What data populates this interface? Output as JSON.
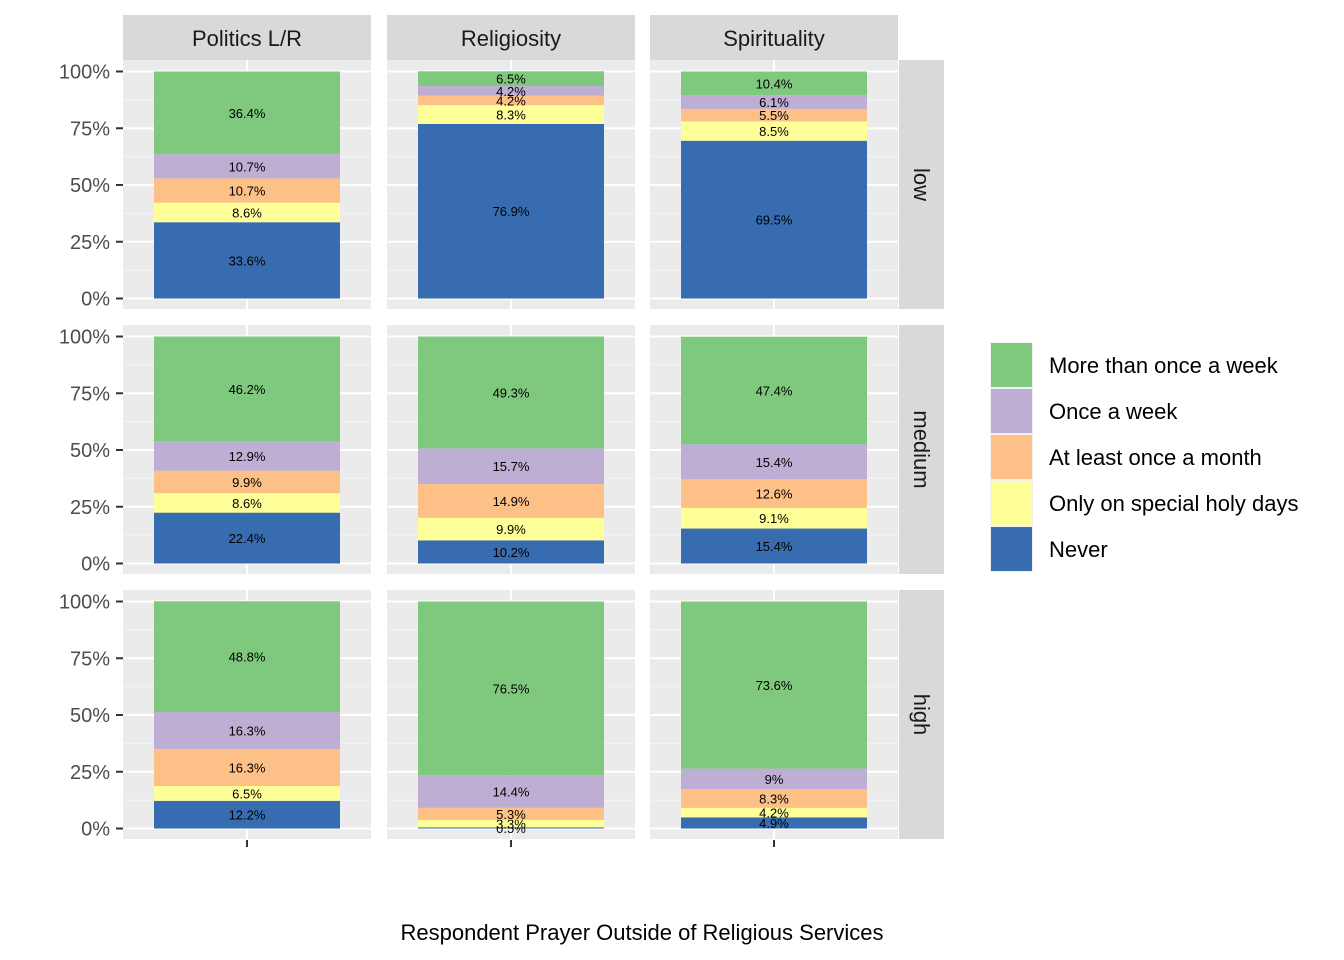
{
  "chart_data": {
    "type": "bar",
    "stacked": true,
    "xlabel": "Respondent Prayer Outside of Religious Services",
    "ylabel": "",
    "ylim": [
      0,
      100
    ],
    "y_ticks": [
      "0%",
      "25%",
      "50%",
      "75%",
      "100%"
    ],
    "y_tick_values": [
      0,
      25,
      50,
      75,
      100
    ],
    "grid": true,
    "legend_position": "right",
    "facet_columns": [
      "Politics L/R",
      "Religiosity",
      "Spirituality"
    ],
    "facet_rows": [
      "low",
      "medium",
      "high"
    ],
    "series": [
      {
        "name": "Never",
        "color": "#386CB0"
      },
      {
        "name": "Only on special holy days",
        "color": "#FFFF99"
      },
      {
        "name": "At least once a month",
        "color": "#FDC086"
      },
      {
        "name": "Once a week",
        "color": "#BEAED4"
      },
      {
        "name": "More than once a week",
        "color": "#7FC97F"
      }
    ],
    "legend_order": [
      "More than once a week",
      "Once a week",
      "At least once a month",
      "Only on special holy days",
      "Never"
    ],
    "panels": [
      {
        "column": "Politics L/R",
        "row": "low",
        "values": [
          33.6,
          8.6,
          10.7,
          10.7,
          36.4
        ],
        "labels": [
          "33.6%",
          "8.6%",
          "10.7%",
          "10.7%",
          "36.4%"
        ]
      },
      {
        "column": "Religiosity",
        "row": "low",
        "values": [
          76.9,
          8.3,
          4.2,
          4.2,
          6.5
        ],
        "labels": [
          "76.9%",
          "8.3%",
          "4.2%",
          "4.2%",
          "6.5%"
        ]
      },
      {
        "column": "Spirituality",
        "row": "low",
        "values": [
          69.5,
          8.5,
          5.5,
          6.1,
          10.4
        ],
        "labels": [
          "69.5%",
          "8.5%",
          "5.5%",
          "6.1%",
          "10.4%"
        ]
      },
      {
        "column": "Politics L/R",
        "row": "medium",
        "values": [
          22.4,
          8.6,
          9.9,
          12.9,
          46.2
        ],
        "labels": [
          "22.4%",
          "8.6%",
          "9.9%",
          "12.9%",
          "46.2%"
        ]
      },
      {
        "column": "Religiosity",
        "row": "medium",
        "values": [
          10.2,
          9.9,
          14.9,
          15.7,
          49.3
        ],
        "labels": [
          "10.2%",
          "9.9%",
          "14.9%",
          "15.7%",
          "49.3%"
        ]
      },
      {
        "column": "Spirituality",
        "row": "medium",
        "values": [
          15.4,
          9.1,
          12.6,
          15.4,
          47.4
        ],
        "labels": [
          "15.4%",
          "9.1%",
          "12.6%",
          "15.4%",
          "47.4%"
        ]
      },
      {
        "column": "Politics L/R",
        "row": "high",
        "values": [
          12.2,
          6.5,
          16.3,
          16.3,
          48.8
        ],
        "labels": [
          "12.2%",
          "6.5%",
          "16.3%",
          "16.3%",
          "48.8%"
        ]
      },
      {
        "column": "Religiosity",
        "row": "high",
        "values": [
          0.5,
          3.3,
          5.3,
          14.4,
          76.5
        ],
        "labels": [
          "0.5%",
          "3.3%",
          "5.3%",
          "14.4%",
          "76.5%"
        ]
      },
      {
        "column": "Spirituality",
        "row": "high",
        "values": [
          4.9,
          4.2,
          8.3,
          9.0,
          73.6
        ],
        "labels": [
          "4.9%",
          "4.2%",
          "8.3%",
          "9%",
          "73.6%"
        ]
      }
    ]
  }
}
